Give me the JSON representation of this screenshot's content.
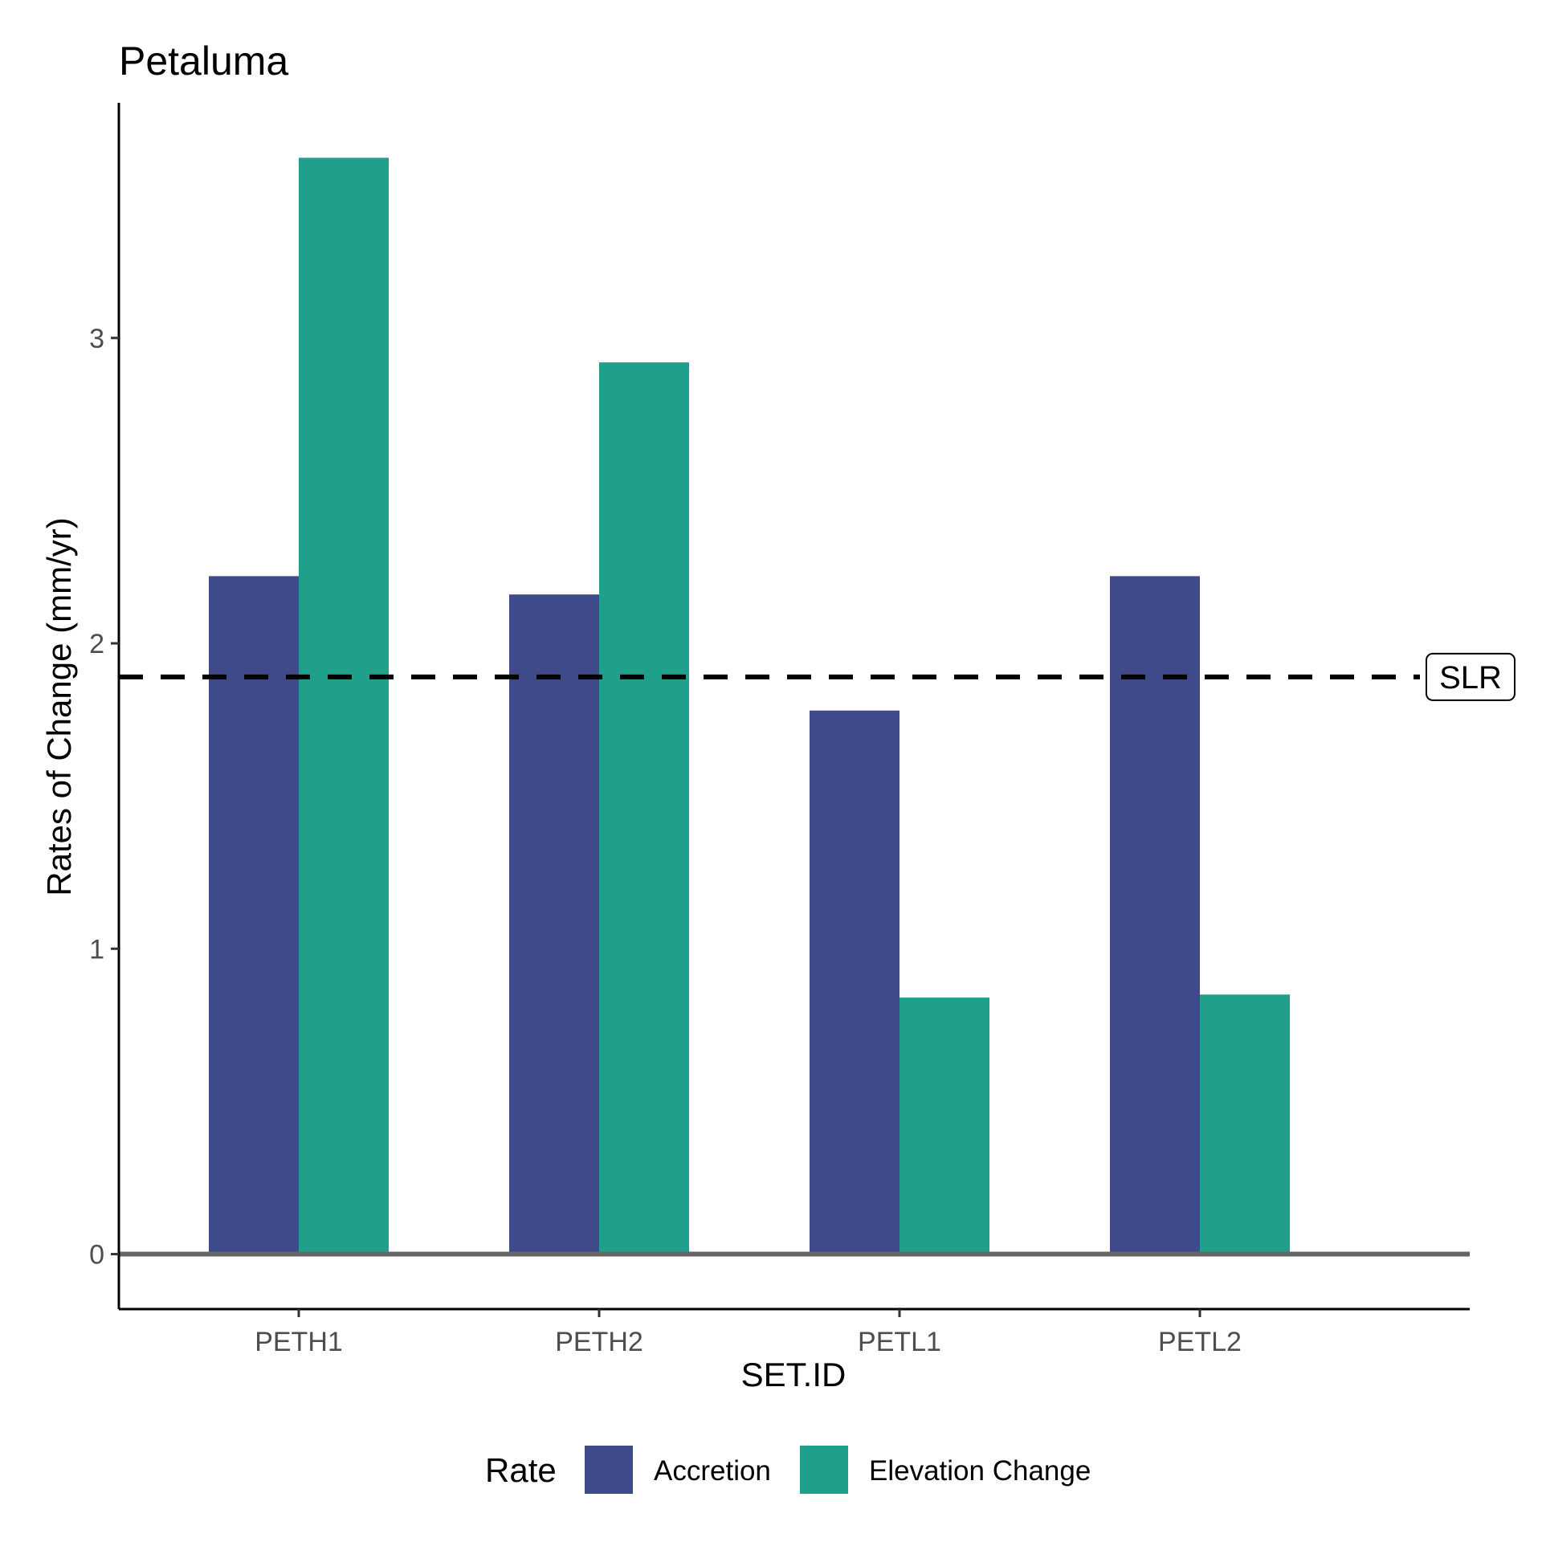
{
  "chart_data": {
    "type": "bar",
    "title": "Petaluma",
    "xlabel": "SET.ID",
    "ylabel": "Rates of Change (mm/yr)",
    "categories": [
      "PETH1",
      "PETH2",
      "PETL1",
      "PETL2"
    ],
    "series": [
      {
        "name": "Accretion",
        "color": "#3f4a8a",
        "values": [
          2.22,
          2.16,
          1.78,
          2.22
        ]
      },
      {
        "name": "Elevation Change",
        "color": "#20a08a",
        "values": [
          3.59,
          2.92,
          0.84,
          0.85
        ]
      }
    ],
    "yticks": [
      0,
      1,
      2,
      3
    ],
    "ylim": [
      -0.18,
      3.77
    ],
    "grid": false,
    "legend": {
      "title": "Rate",
      "position": "bottom"
    },
    "reference_lines": [
      {
        "y": 0,
        "style": "solid",
        "color": "#666666"
      },
      {
        "y": 1.89,
        "style": "dashed",
        "color": "#000000",
        "label": "SLR"
      }
    ]
  }
}
